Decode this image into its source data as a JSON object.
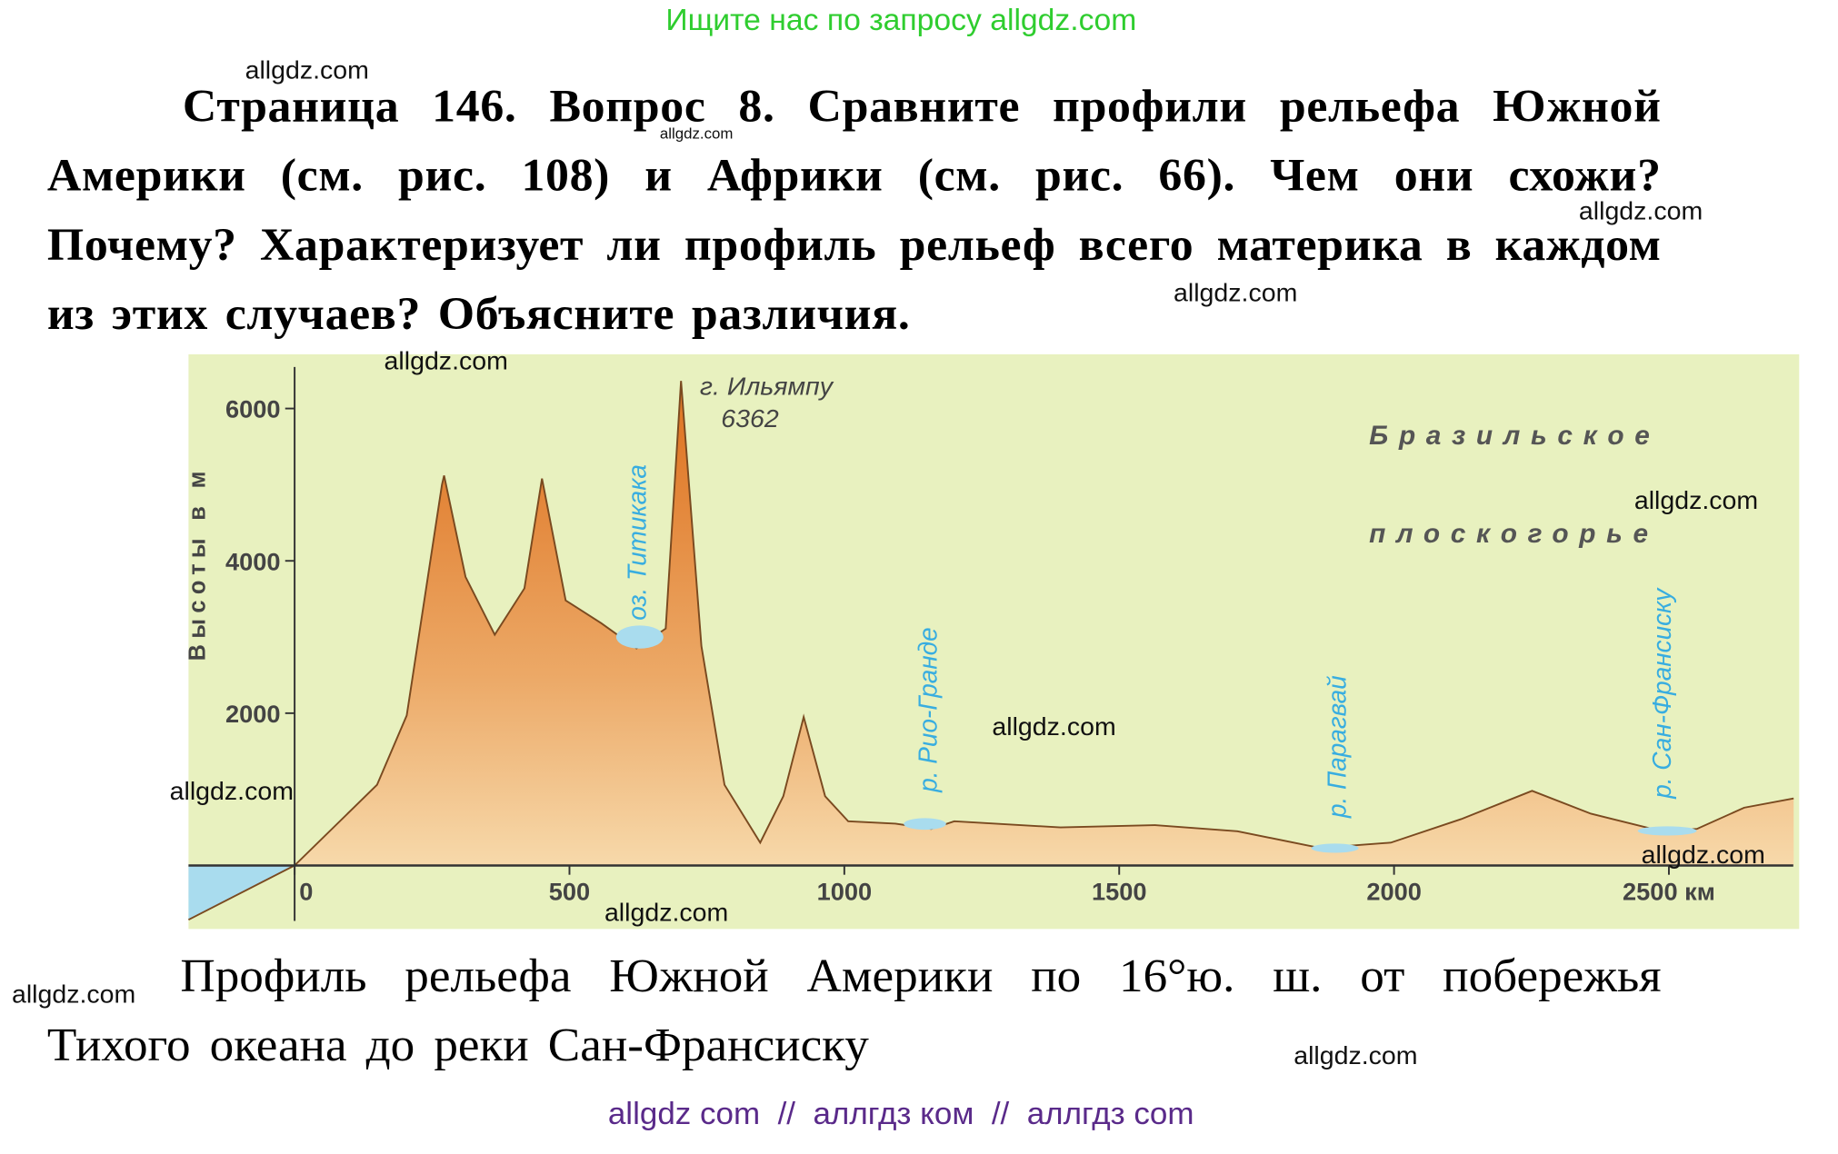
{
  "header": {
    "banner": "Ищите нас по запросу allgdz.com"
  },
  "question": {
    "text": "Страница 146. Вопрос 8. Сравните профили рельефа Южной Америки (см. рис. 108) и Африки (см. рис. 66). Чем они схожи? Почему? Характеризует ли профиль рельеф всего материка в каждом из этих случаев? Объясните различия."
  },
  "figure": {
    "y_label": "Высоты в м",
    "xlim": [
      -193,
      2737
    ],
    "ylim": [
      -833,
      6712
    ],
    "xticks": [
      0,
      500,
      1000,
      1500,
      2000,
      {
        "value": 2500,
        "label": "2500 км"
      }
    ],
    "yticks": [
      2000,
      4000,
      6000
    ],
    "profile": {
      "x": [
        -193,
        0,
        150,
        204,
        268,
        272,
        311,
        364,
        418,
        450,
        493,
        558,
        622,
        675,
        703,
        740,
        782,
        847,
        889,
        926,
        965,
        1007,
        1093,
        1158,
        1200,
        1393,
        1565,
        1715,
        1865,
        1994,
        2122,
        2251,
        2358,
        2487,
        2551,
        2637,
        2727
      ],
      "values": [
        -712,
        0,
        1060,
        1970,
        5000,
        5120,
        3790,
        3030,
        3640,
        5080,
        3480,
        3180,
        2850,
        3110,
        6362,
        2880,
        1060,
        300,
        910,
        1950,
        910,
        580,
        550,
        480,
        580,
        500,
        530,
        450,
        230,
        300,
        610,
        980,
        680,
        450,
        480,
        760,
        880
      ]
    },
    "peak": {
      "name": "г. Ильямпу",
      "elevation": 6362
    },
    "labels": [
      "оз. Титикака",
      "р. Рио-Гранде",
      "р. Парагвай",
      "р. Сан-Франсиску",
      "Бразильское",
      "плоскогорье"
    ]
  },
  "caption": "Профиль рельефа Южной Америки по 16°ю. ш. от побережья Тихого океана до реки Сан-Франсиску",
  "footer": "allgdz com  //  аллгдз ком  //  аллгдз com",
  "watermarks": [
    "allgdz.com",
    "allgdz.com",
    "allgdz.com",
    "allgdz.com",
    "allgdz.com",
    "allgdz.com",
    "allgdz.com",
    "allgdz.com",
    "allgdz.com",
    "allgdz.com",
    "allgdz.com",
    "allgdz.com"
  ]
}
